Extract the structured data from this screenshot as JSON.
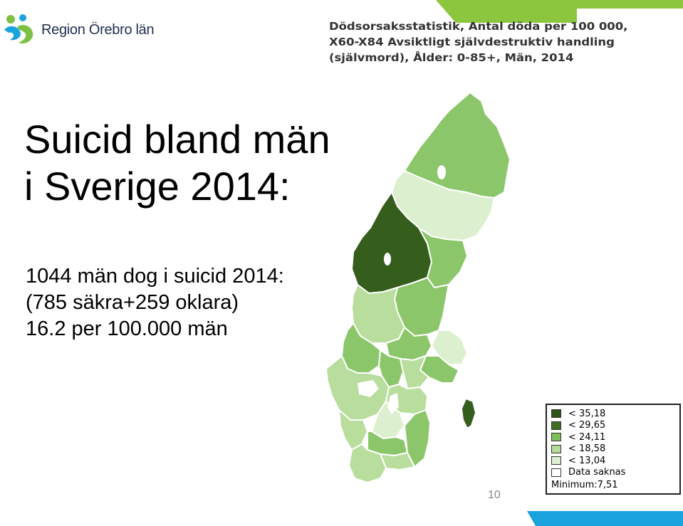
{
  "brand": {
    "name": "Region Örebro län"
  },
  "map_title_lines": [
    "Dödsorsaksstatistik, Antal döda per 100 000,",
    "X60-X84 Avsiktligt självdestruktiv handling",
    "(självmord), Ålder: 0-85+, Män, 2014"
  ],
  "slide": {
    "title_line1": "Suicid bland män",
    "title_line2": "i Sverige 2014:",
    "body_line1": "1044 män dog i suicid 2014:",
    "body_line2": "(785 säkra+259 oklara)",
    "body_line3": "16.2 per 100.000 män"
  },
  "legend": {
    "items": [
      {
        "label": "< 35,18",
        "color": "#2e5418"
      },
      {
        "label": "< 29,65",
        "color": "#3e6d22"
      },
      {
        "label": "< 24,11",
        "color": "#7fbf5c"
      },
      {
        "label": "< 18,58",
        "color": "#b6dc9a"
      },
      {
        "label": "< 13,04",
        "color": "#ddefd0"
      },
      {
        "label": "Data saknas",
        "color": "#ffffff"
      }
    ],
    "minimum": "Minimum:7,51"
  },
  "colors": {
    "dark": "#355d1c",
    "mid_green": "#8cc66a",
    "light_green": "#b8dd9d",
    "pale_green": "#dcefcf",
    "accent_green": "#7dc043",
    "accent_blue": "#1aa3dd"
  },
  "page_number": "10"
}
